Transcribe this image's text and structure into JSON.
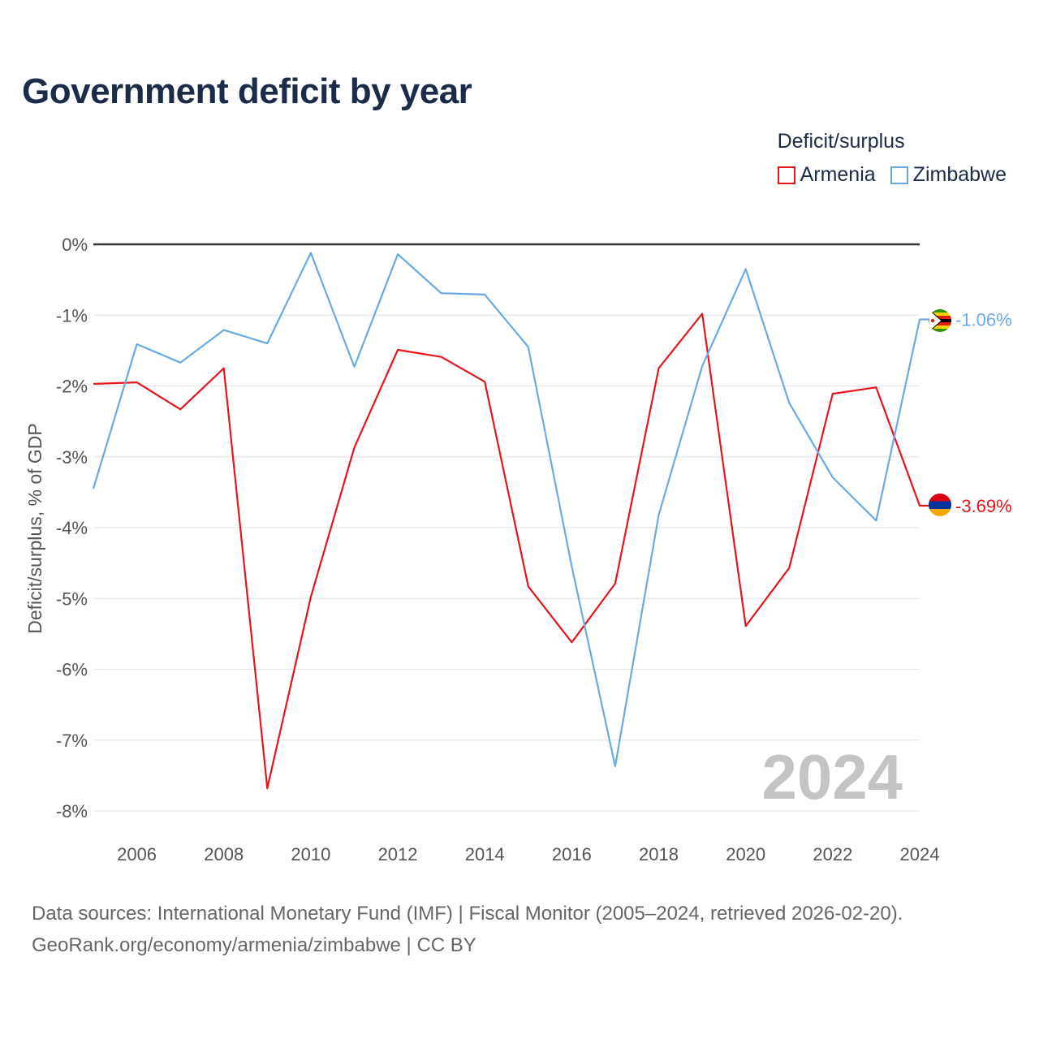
{
  "title": "Government deficit by year",
  "legend": {
    "title": "Deficit/surplus",
    "items": [
      {
        "label": "Armenia",
        "color": "#e8141c"
      },
      {
        "label": "Zimbabwe",
        "color": "#6aaae4"
      }
    ]
  },
  "watermark": "2024",
  "footer": {
    "line1": "Data sources: International Monetary Fund (IMF) | Fiscal Monitor (2005–2024, retrieved 2026-02-20).",
    "line2": "GeoRank.org/economy/armenia/zimbabwe | CC BY"
  },
  "chart_data": {
    "type": "line",
    "title": "Government deficit by year",
    "xlabel": "",
    "ylabel": "Deficit/surplus, % of GDP",
    "xlim": [
      2005,
      2024
    ],
    "ylim": [
      -8,
      0
    ],
    "x_ticks": [
      2006,
      2008,
      2010,
      2012,
      2014,
      2016,
      2018,
      2020,
      2022,
      2024
    ],
    "y_ticks": [
      0,
      -1,
      -2,
      -3,
      -4,
      -5,
      -6,
      -7,
      -8
    ],
    "y_tick_labels": [
      "0%",
      "-1%",
      "-2%",
      "-3%",
      "-4%",
      "-5%",
      "-6%",
      "-7%",
      "-8%"
    ],
    "x": [
      2005,
      2006,
      2007,
      2008,
      2009,
      2010,
      2011,
      2012,
      2013,
      2014,
      2015,
      2016,
      2017,
      2018,
      2019,
      2020,
      2021,
      2022,
      2023,
      2024
    ],
    "series": [
      {
        "name": "Armenia",
        "color": "#e8141c",
        "end_label": "-3.69%",
        "values": [
          -1.97,
          -1.95,
          -2.33,
          -1.75,
          -7.68,
          -4.98,
          -2.87,
          -1.49,
          -1.59,
          -1.94,
          -4.83,
          -5.62,
          -4.79,
          -1.75,
          -0.98,
          -5.39,
          -4.57,
          -2.11,
          -2.02,
          -3.69
        ]
      },
      {
        "name": "Zimbabwe",
        "color": "#6aaae4",
        "end_label": "-1.06%",
        "values": [
          -3.45,
          -1.41,
          -1.67,
          -1.21,
          -1.4,
          -0.12,
          -1.73,
          -0.14,
          -0.69,
          -0.71,
          -1.45,
          -4.55,
          -7.37,
          -3.82,
          -1.72,
          -0.35,
          -2.24,
          -3.29,
          -3.9,
          -1.06
        ]
      }
    ]
  }
}
